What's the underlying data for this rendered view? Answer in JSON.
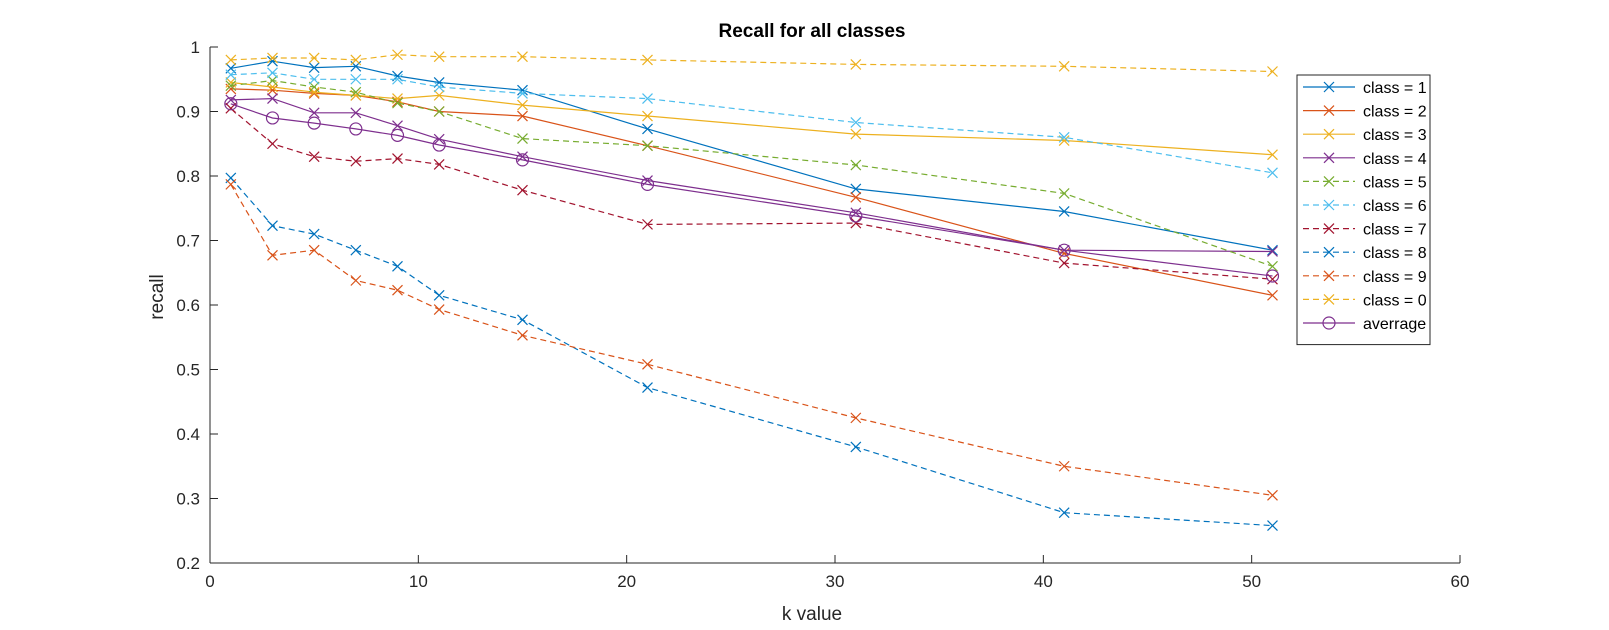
{
  "chart_data": {
    "type": "line",
    "title": "Recall for all classes",
    "xlabel": "k value",
    "ylabel": "recall",
    "xlim": [
      0,
      60
    ],
    "ylim": [
      0.2,
      1
    ],
    "xticks": [
      "0",
      "10",
      "20",
      "30",
      "40",
      "50",
      "60"
    ],
    "yticks": [
      "0.2",
      "0.3",
      "0.4",
      "0.5",
      "0.6",
      "0.7",
      "0.8",
      "0.9",
      "1"
    ],
    "grid": false,
    "legend_position": "top-right",
    "x": [
      1,
      3,
      5,
      7,
      9,
      11,
      15,
      21,
      31,
      41,
      51
    ],
    "series": [
      {
        "name": "class = 1",
        "color": "#0072BD",
        "dash": "solid",
        "marker": "x",
        "values": [
          0.967,
          0.978,
          0.968,
          0.97,
          0.955,
          0.945,
          0.933,
          0.873,
          0.78,
          0.745,
          0.685
        ]
      },
      {
        "name": "class = 2",
        "color": "#D95319",
        "dash": "solid",
        "marker": "x",
        "values": [
          0.935,
          0.933,
          0.928,
          0.925,
          0.915,
          0.9,
          0.893,
          0.847,
          0.767,
          0.68,
          0.615
        ]
      },
      {
        "name": "class = 3",
        "color": "#EDB120",
        "dash": "solid",
        "marker": "x",
        "values": [
          0.945,
          0.938,
          0.93,
          0.925,
          0.92,
          0.925,
          0.91,
          0.893,
          0.865,
          0.855,
          0.833
        ]
      },
      {
        "name": "class = 4",
        "color": "#7E2F8E",
        "dash": "solid",
        "marker": "x",
        "values": [
          0.918,
          0.92,
          0.898,
          0.898,
          0.878,
          0.857,
          0.83,
          0.793,
          0.743,
          0.685,
          0.683
        ]
      },
      {
        "name": "class = 5",
        "color": "#77AC30",
        "dash": "dashed",
        "marker": "x",
        "values": [
          0.94,
          0.948,
          0.938,
          0.93,
          0.913,
          0.9,
          0.858,
          0.847,
          0.817,
          0.773,
          0.66
        ]
      },
      {
        "name": "class = 6",
        "color": "#4DBEEE",
        "dash": "dashed",
        "marker": "x",
        "values": [
          0.957,
          0.96,
          0.95,
          0.95,
          0.95,
          0.938,
          0.928,
          0.92,
          0.883,
          0.86,
          0.805
        ]
      },
      {
        "name": "class = 7",
        "color": "#A2142F",
        "dash": "dashed",
        "marker": "x",
        "values": [
          0.905,
          0.85,
          0.83,
          0.823,
          0.827,
          0.818,
          0.778,
          0.725,
          0.727,
          0.665,
          0.64
        ]
      },
      {
        "name": "class = 8",
        "color": "#0072BD",
        "dash": "dashed",
        "marker": "x",
        "values": [
          0.797,
          0.723,
          0.71,
          0.685,
          0.66,
          0.615,
          0.577,
          0.472,
          0.38,
          0.278,
          0.258
        ]
      },
      {
        "name": "class = 9",
        "color": "#D95319",
        "dash": "dashed",
        "marker": "x",
        "values": [
          0.787,
          0.677,
          0.685,
          0.638,
          0.623,
          0.593,
          0.553,
          0.508,
          0.425,
          0.35,
          0.305
        ]
      },
      {
        "name": "class = 0",
        "color": "#EDB120",
        "dash": "dashed",
        "marker": "x",
        "values": [
          0.98,
          0.983,
          0.983,
          0.98,
          0.988,
          0.985,
          0.985,
          0.98,
          0.973,
          0.97,
          0.962
        ]
      },
      {
        "name": "averrage",
        "color": "#7E2F8E",
        "dash": "solid",
        "marker": "o",
        "values": [
          0.912,
          0.89,
          0.882,
          0.873,
          0.863,
          0.848,
          0.825,
          0.787,
          0.738,
          0.685,
          0.645
        ]
      }
    ]
  }
}
